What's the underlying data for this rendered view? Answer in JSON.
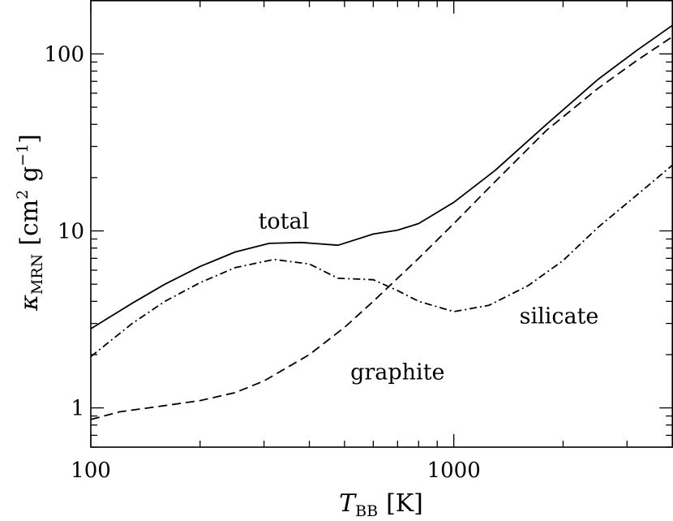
{
  "chart_data": {
    "type": "line",
    "xscale": "log",
    "yscale": "log",
    "xlim": [
      100,
      4000
    ],
    "ylim": [
      0.6,
      200
    ],
    "xlabel": {
      "main": "T",
      "sub": "BB",
      "unit": "[K]"
    },
    "ylabel": {
      "main": "κ",
      "sub": "MRN",
      "unit_a": "[cm",
      "sup_a": "2",
      "unit_b": " g",
      "sup_b": "−1",
      "unit_c": "]"
    },
    "x_ticks": [
      {
        "value": 100,
        "label": "100"
      },
      {
        "value": 1000,
        "label": "1000"
      }
    ],
    "y_ticks": [
      {
        "value": 1,
        "label": "1"
      },
      {
        "value": 10,
        "label": "10"
      },
      {
        "value": 100,
        "label": "100"
      }
    ],
    "grid": false,
    "series": [
      {
        "name": "total",
        "dash": "solid",
        "x": [
          100,
          130,
          160,
          200,
          250,
          310,
          380,
          480,
          600,
          700,
          800,
          1000,
          1300,
          1800,
          2500,
          3200,
          4000
        ],
        "y": [
          2.8,
          3.9,
          5.0,
          6.3,
          7.6,
          8.5,
          8.6,
          8.3,
          9.6,
          10.1,
          11.0,
          14.5,
          22.0,
          40.0,
          72.0,
          105.0,
          145.0
        ]
      },
      {
        "name": "graphite",
        "dash": "dashed",
        "x": [
          100,
          120,
          160,
          200,
          250,
          300,
          400,
          500,
          600,
          700,
          800,
          1000,
          1300,
          1800,
          2500,
          3200,
          4000
        ],
        "y": [
          0.86,
          0.95,
          1.03,
          1.1,
          1.22,
          1.42,
          2.0,
          2.85,
          4.0,
          5.4,
          7.0,
          11.0,
          19.0,
          37.0,
          64.0,
          92.0,
          125.0
        ]
      },
      {
        "name": "silicate",
        "dash": "dashdot",
        "x": [
          100,
          130,
          160,
          200,
          250,
          320,
          400,
          480,
          600,
          700,
          800,
          1000,
          1250,
          1600,
          2000,
          2500,
          3200,
          4000
        ],
        "y": [
          1.95,
          3.0,
          4.0,
          5.1,
          6.2,
          6.9,
          6.5,
          5.4,
          5.3,
          4.6,
          4.0,
          3.5,
          3.8,
          4.9,
          6.8,
          10.5,
          16.0,
          23.5
        ]
      }
    ],
    "annotations": [
      {
        "text": "total",
        "x": 340,
        "y": 10.3
      },
      {
        "text": "silicate",
        "x": 1950,
        "y": 3.0
      },
      {
        "text": "graphite",
        "x": 700,
        "y": 1.45
      }
    ]
  }
}
